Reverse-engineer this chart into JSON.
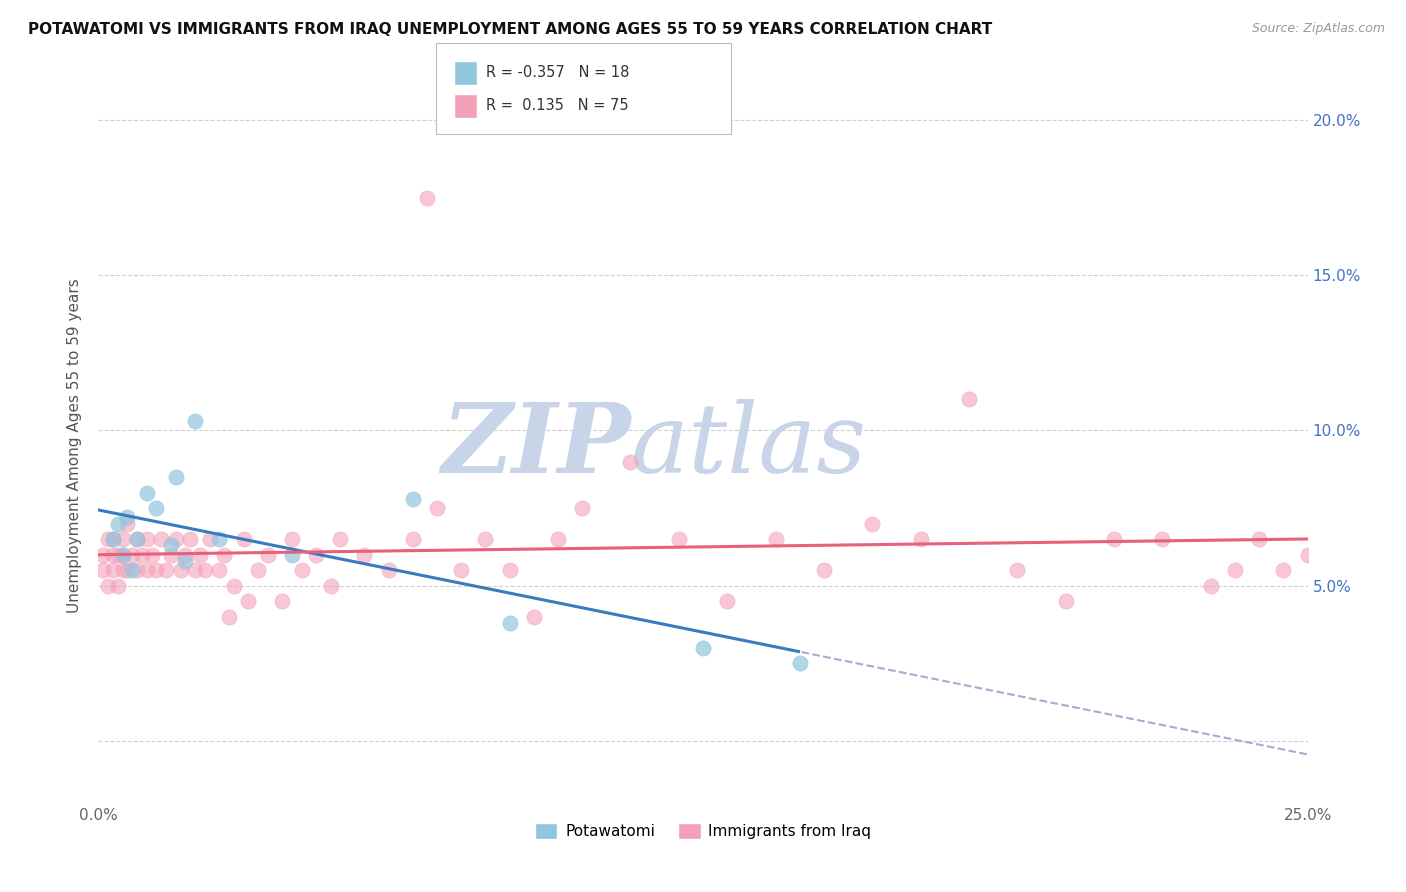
{
  "title": "POTAWATOMI VS IMMIGRANTS FROM IRAQ UNEMPLOYMENT AMONG AGES 55 TO 59 YEARS CORRELATION CHART",
  "source": "Source: ZipAtlas.com",
  "ylabel": "Unemployment Among Ages 55 to 59 years",
  "xlim": [
    0.0,
    0.25
  ],
  "ylim": [
    -0.02,
    0.21
  ],
  "xticks": [
    0.0,
    0.05,
    0.1,
    0.15,
    0.2,
    0.25
  ],
  "xticklabels": [
    "0.0%",
    "",
    "",
    "",
    "",
    "25.0%"
  ],
  "yticks": [
    0.0,
    0.05,
    0.1,
    0.15,
    0.2
  ],
  "yticklabels_right": [
    "",
    "5.0%",
    "10.0%",
    "15.0%",
    "20.0%"
  ],
  "blue_color": "#92c5de",
  "pink_color": "#f4a0b8",
  "blue_line_color": "#3a7abf",
  "pink_line_color": "#e8607a",
  "dashed_line_color": "#aaaacc",
  "background_color": "#ffffff",
  "watermark_zip_color": "#c8d4e8",
  "watermark_atlas_color": "#c8d4e8",
  "legend_R1": "-0.357",
  "legend_N1": "18",
  "legend_R2": "0.135",
  "legend_N2": "75",
  "pot_x": [
    0.003,
    0.004,
    0.005,
    0.006,
    0.007,
    0.008,
    0.01,
    0.012,
    0.015,
    0.016,
    0.018,
    0.02,
    0.025,
    0.04,
    0.065,
    0.085,
    0.125,
    0.145
  ],
  "pot_y": [
    0.065,
    0.07,
    0.06,
    0.072,
    0.055,
    0.065,
    0.08,
    0.075,
    0.063,
    0.085,
    0.058,
    0.103,
    0.065,
    0.06,
    0.078,
    0.038,
    0.03,
    0.025
  ],
  "iraq_x": [
    0.001,
    0.001,
    0.002,
    0.002,
    0.003,
    0.003,
    0.003,
    0.004,
    0.004,
    0.005,
    0.005,
    0.005,
    0.006,
    0.006,
    0.007,
    0.008,
    0.008,
    0.009,
    0.01,
    0.01,
    0.011,
    0.012,
    0.013,
    0.014,
    0.015,
    0.016,
    0.017,
    0.018,
    0.019,
    0.02,
    0.021,
    0.022,
    0.023,
    0.025,
    0.026,
    0.027,
    0.028,
    0.03,
    0.031,
    0.033,
    0.035,
    0.038,
    0.04,
    0.042,
    0.045,
    0.048,
    0.05,
    0.055,
    0.06,
    0.065,
    0.068,
    0.07,
    0.075,
    0.08,
    0.085,
    0.09,
    0.095,
    0.1,
    0.11,
    0.12,
    0.13,
    0.14,
    0.15,
    0.16,
    0.17,
    0.18,
    0.19,
    0.2,
    0.21,
    0.22,
    0.23,
    0.235,
    0.24,
    0.245,
    0.25
  ],
  "iraq_y": [
    0.055,
    0.06,
    0.05,
    0.065,
    0.055,
    0.06,
    0.065,
    0.05,
    0.06,
    0.055,
    0.06,
    0.065,
    0.055,
    0.07,
    0.06,
    0.055,
    0.065,
    0.06,
    0.055,
    0.065,
    0.06,
    0.055,
    0.065,
    0.055,
    0.06,
    0.065,
    0.055,
    0.06,
    0.065,
    0.055,
    0.06,
    0.055,
    0.065,
    0.055,
    0.06,
    0.04,
    0.05,
    0.065,
    0.045,
    0.055,
    0.06,
    0.045,
    0.065,
    0.055,
    0.06,
    0.05,
    0.065,
    0.06,
    0.055,
    0.065,
    0.175,
    0.075,
    0.055,
    0.065,
    0.055,
    0.04,
    0.065,
    0.075,
    0.09,
    0.065,
    0.045,
    0.065,
    0.055,
    0.07,
    0.065,
    0.11,
    0.055,
    0.045,
    0.065,
    0.065,
    0.05,
    0.055,
    0.065,
    0.055,
    0.06
  ]
}
